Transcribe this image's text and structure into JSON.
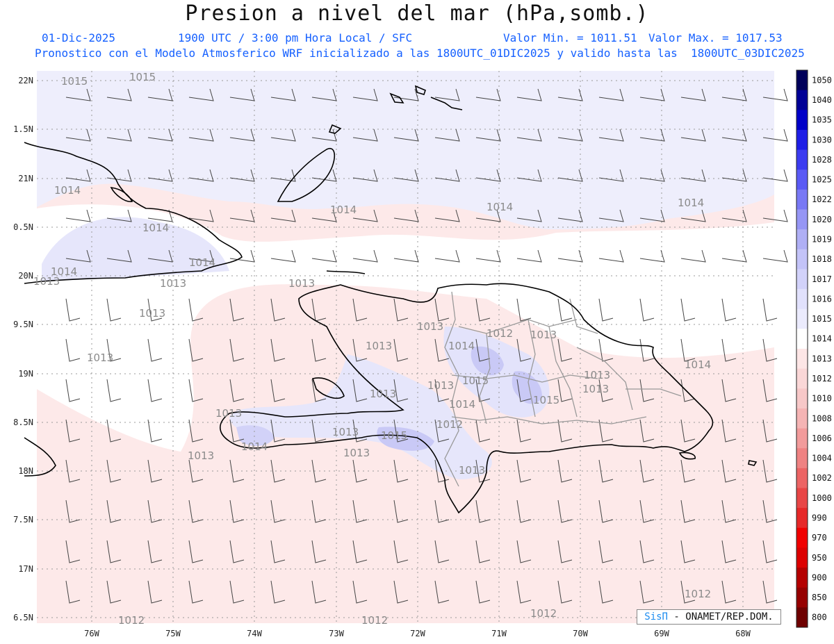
{
  "header": {
    "title": "Presion a nivel del mar (hPa,somb.)",
    "date": "01-Dic-2025",
    "time": "1900 UTC / 3:00 pm Hora Local / SFC",
    "valmin": "Valor Min. = 1011.51",
    "valmax": "Valor Max. = 1017.53",
    "desc": "Pronostico con el Modelo Atmosferico WRF inicializado a las 1800UTC_01DIC2025 y valido hasta las  1800UTC_03DIC2025"
  },
  "axes": {
    "lat_labels": [
      "22N",
      "1.5N",
      "21N",
      "0.5N",
      "20N",
      "9.5N",
      "19N",
      "8.5N",
      "18N",
      "7.5N",
      "17N",
      "6.5N"
    ],
    "lon_labels": [
      "76W",
      "75W",
      "74W",
      "73W",
      "72W",
      "71W",
      "70W",
      "69W",
      "68W"
    ]
  },
  "colorbar": {
    "labels": [
      "1050",
      "1040",
      "1035",
      "1030",
      "1028",
      "1025",
      "1022",
      "1020",
      "1019",
      "1018",
      "1017",
      "1016",
      "1015",
      "1014",
      "1013",
      "1012",
      "1010",
      "1008",
      "1006",
      "1004",
      "1002",
      "1000",
      "990",
      "970",
      "950",
      "900",
      "850",
      "800"
    ],
    "colors": [
      "#00005a",
      "#000096",
      "#0000c8",
      "#1e1ee6",
      "#3c3cf0",
      "#5a5af5",
      "#7878f5",
      "#9696f5",
      "#afaff5",
      "#c3c3f8",
      "#d2d2fa",
      "#e1e1fc",
      "#ebebfd",
      "#ffffff",
      "#fde6e6",
      "#fad7d7",
      "#f7c8c8",
      "#f5b4b4",
      "#f29b9b",
      "#ef8282",
      "#ec6464",
      "#e84646",
      "#e62828",
      "#f00000",
      "#dc0000",
      "#b40000",
      "#960000",
      "#6e0000"
    ]
  },
  "isobars": [
    {
      "label": "1015"
    },
    {
      "label": "1015"
    },
    {
      "label": "1014"
    },
    {
      "label": "1014"
    },
    {
      "label": "1014"
    },
    {
      "label": "1014"
    },
    {
      "label": "1014"
    },
    {
      "label": "1013"
    },
    {
      "label": "1013"
    },
    {
      "label": "1013"
    },
    {
      "label": "1013"
    },
    {
      "label": "1013"
    },
    {
      "label": "1013"
    },
    {
      "label": "1014"
    },
    {
      "label": "1012"
    },
    {
      "label": "1013"
    },
    {
      "label": "1015"
    },
    {
      "label": "1013"
    },
    {
      "label": "1013"
    },
    {
      "label": "1013"
    },
    {
      "label": "1013"
    },
    {
      "label": "1014"
    },
    {
      "label": "1015"
    },
    {
      "label": "1014"
    },
    {
      "label": "1012"
    },
    {
      "label": "1013"
    },
    {
      "label": "1015"
    },
    {
      "label": "1013"
    },
    {
      "label": "1013"
    },
    {
      "label": "1013"
    },
    {
      "label": "1013"
    },
    {
      "label": "1014"
    },
    {
      "label": "1012"
    },
    {
      "label": "1012"
    },
    {
      "label": "1012"
    },
    {
      "label": "1012"
    },
    {
      "label": "1014"
    },
    {
      "label": "1013"
    },
    {
      "label": "1014"
    }
  ],
  "credit": {
    "logo": "SisΠ",
    "text": "- ONAMET/REP.DOM."
  }
}
